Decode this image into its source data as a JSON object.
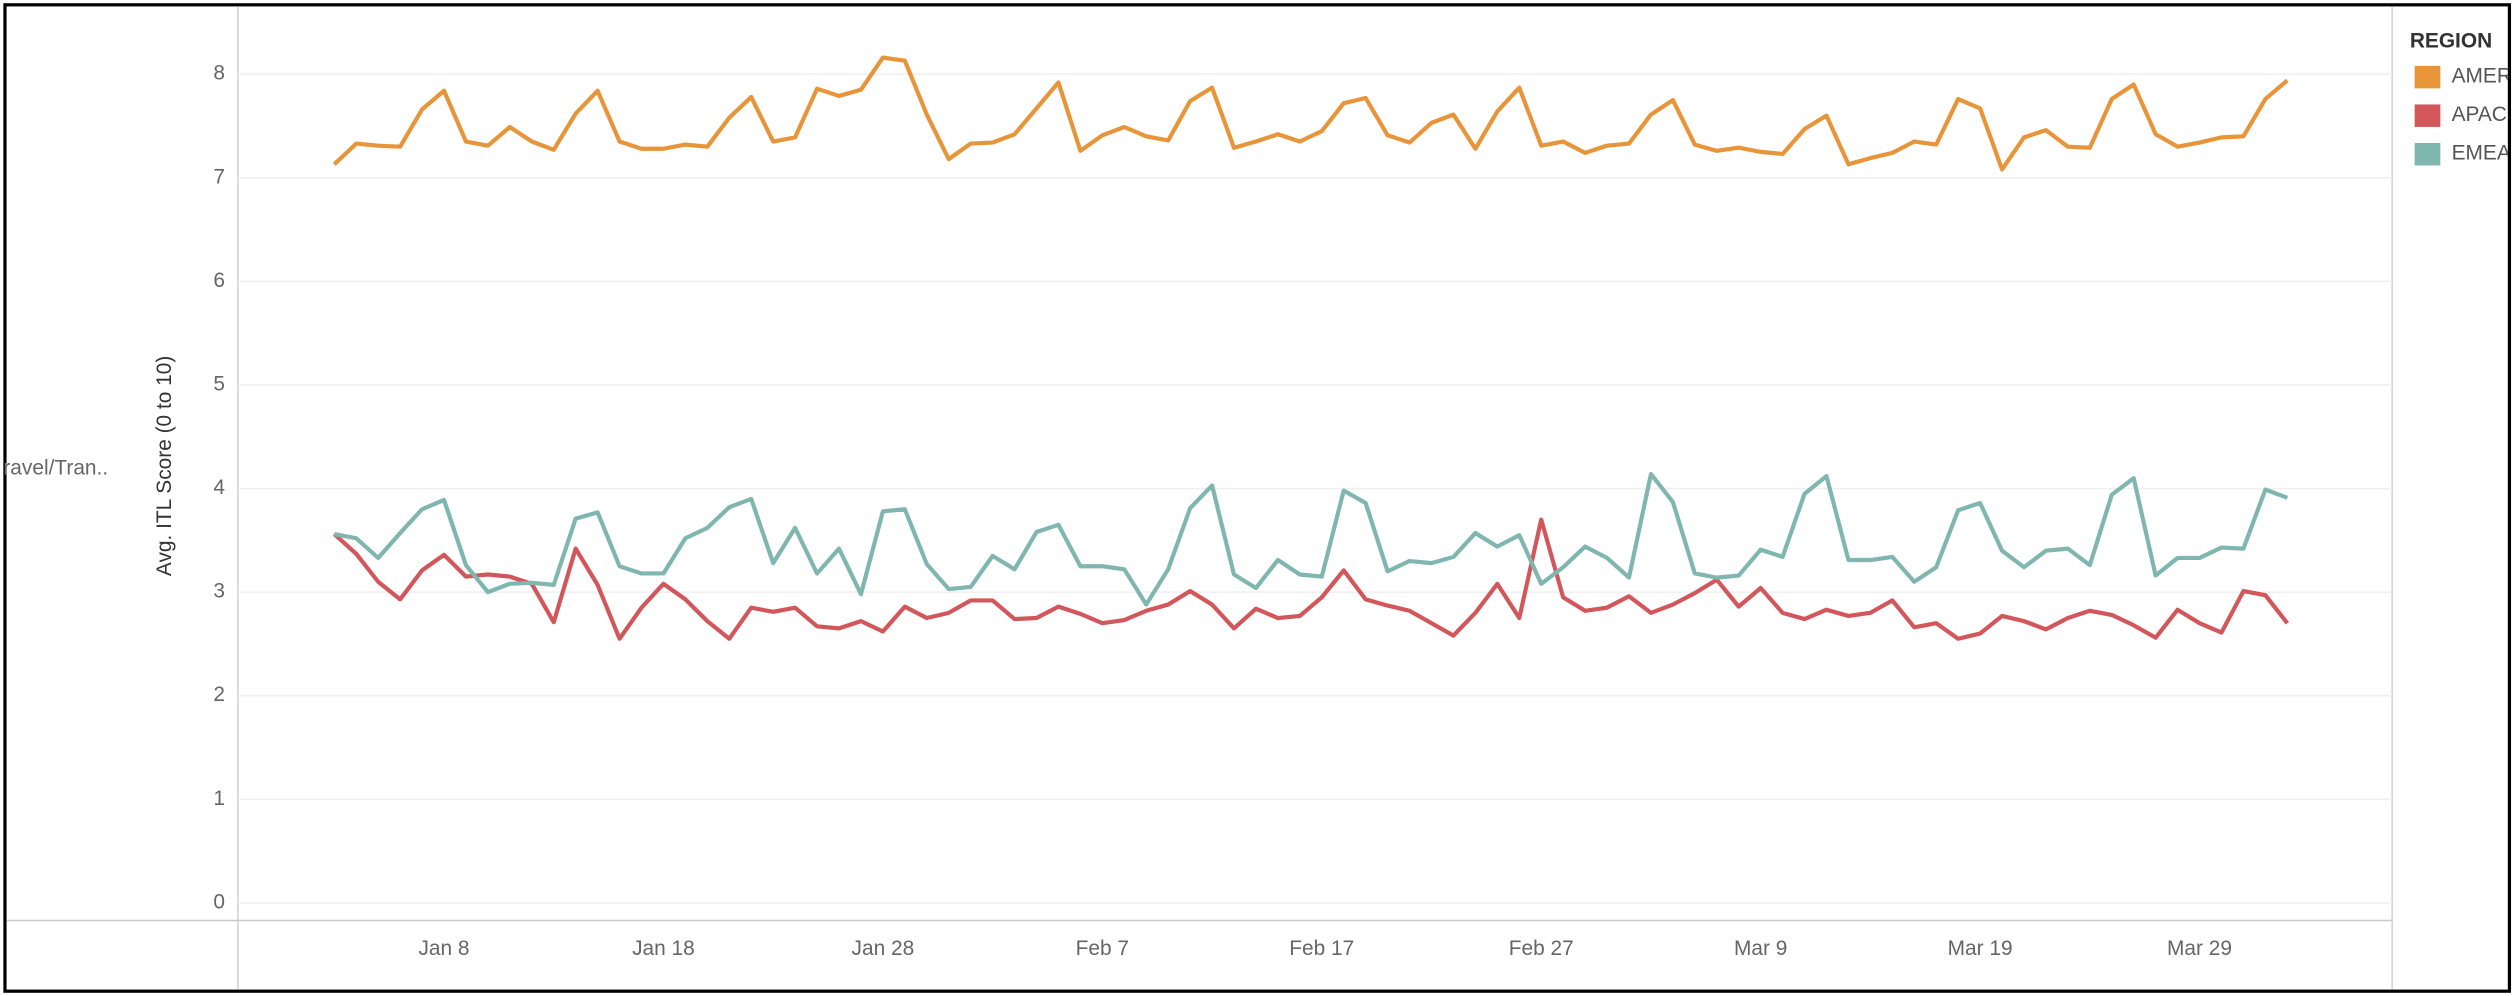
{
  "chart_data": {
    "type": "line",
    "ylabel": "Avg. ITL Score (0 to 10)",
    "row_label": "ravel/Tran..",
    "legend_title": "REGION",
    "legend": "right",
    "grid": true,
    "categories": [
      null,
      null,
      null,
      null,
      null,
      "Jan 8",
      null,
      null,
      null,
      null,
      null,
      null,
      null,
      null,
      null,
      "Jan 18",
      null,
      null,
      null,
      null,
      null,
      null,
      null,
      null,
      null,
      "Jan 28",
      null,
      null,
      null,
      null,
      null,
      null,
      null,
      null,
      null,
      "Feb 7",
      null,
      null,
      null,
      null,
      null,
      null,
      null,
      null,
      null,
      "Feb 17",
      null,
      null,
      null,
      null,
      null,
      null,
      null,
      null,
      null,
      "Feb 27",
      null,
      null,
      null,
      null,
      null,
      null,
      null,
      null,
      null,
      "Mar 9",
      null,
      null,
      null,
      null,
      null,
      null,
      null,
      null,
      null,
      "Mar 19",
      null,
      null,
      null,
      null,
      null,
      null,
      null,
      null,
      null,
      "Mar 29",
      null,
      null,
      null,
      null
    ],
    "ylim": [
      -0.17,
      8.53
    ],
    "yticks": [
      0,
      1,
      2,
      3,
      4,
      5,
      6,
      7,
      8
    ],
    "series": [
      {
        "name": "AMER",
        "color": "#e8953a",
        "values": [
          7.13,
          7.33,
          7.31,
          7.3,
          7.66,
          7.84,
          7.35,
          7.31,
          7.49,
          7.35,
          7.27,
          7.62,
          7.84,
          7.35,
          7.28,
          7.28,
          7.32,
          7.3,
          7.58,
          7.78,
          7.35,
          7.39,
          7.86,
          7.79,
          7.85,
          8.16,
          8.13,
          7.61,
          7.18,
          7.33,
          7.34,
          7.42,
          7.67,
          7.92,
          7.26,
          7.41,
          7.49,
          7.4,
          7.36,
          7.74,
          7.87,
          7.29,
          7.35,
          7.42,
          7.35,
          7.45,
          7.72,
          7.77,
          7.41,
          7.34,
          7.53,
          7.61,
          7.28,
          7.64,
          7.87,
          7.31,
          7.35,
          7.24,
          7.31,
          7.33,
          7.61,
          7.75,
          7.32,
          7.26,
          7.29,
          7.25,
          7.23,
          7.47,
          7.6,
          7.13,
          7.19,
          7.24,
          7.35,
          7.32,
          7.76,
          7.67,
          7.08,
          7.39,
          7.46,
          7.3,
          7.29,
          7.76,
          7.9,
          7.42,
          7.3,
          7.34,
          7.39,
          7.4,
          7.76,
          7.94
        ]
      },
      {
        "name": "APAC",
        "color": "#d3565b",
        "values": [
          3.56,
          3.37,
          3.1,
          2.93,
          3.21,
          3.36,
          3.15,
          3.17,
          3.15,
          3.08,
          2.71,
          3.42,
          3.07,
          2.55,
          2.85,
          3.08,
          2.93,
          2.72,
          2.55,
          2.85,
          2.81,
          2.85,
          2.67,
          2.65,
          2.72,
          2.62,
          2.86,
          2.75,
          2.8,
          2.92,
          2.92,
          2.74,
          2.75,
          2.86,
          2.79,
          2.7,
          2.73,
          2.82,
          2.88,
          3.01,
          2.88,
          2.65,
          2.84,
          2.75,
          2.77,
          2.95,
          3.21,
          2.93,
          2.87,
          2.82,
          2.7,
          2.58,
          2.8,
          3.08,
          2.75,
          3.7,
          2.95,
          2.82,
          2.85,
          2.96,
          2.8,
          2.88,
          2.99,
          3.12,
          2.86,
          3.04,
          2.8,
          2.74,
          2.83,
          2.77,
          2.8,
          2.92,
          2.66,
          2.7,
          2.55,
          2.6,
          2.77,
          2.72,
          2.64,
          2.75,
          2.82,
          2.78,
          2.68,
          2.56,
          2.83,
          2.7,
          2.61,
          3.01,
          2.97,
          2.7
        ]
      },
      {
        "name": "EMEA",
        "color": "#80b6b0",
        "values": [
          3.56,
          3.52,
          3.33,
          3.57,
          3.8,
          3.89,
          3.26,
          3.0,
          3.08,
          3.09,
          3.07,
          3.71,
          3.77,
          3.25,
          3.18,
          3.18,
          3.52,
          3.62,
          3.82,
          3.9,
          3.28,
          3.62,
          3.18,
          3.42,
          2.98,
          3.78,
          3.8,
          3.27,
          3.03,
          3.05,
          3.35,
          3.22,
          3.58,
          3.65,
          3.25,
          3.25,
          3.22,
          2.88,
          3.22,
          3.81,
          4.03,
          3.17,
          3.04,
          3.31,
          3.17,
          3.15,
          3.98,
          3.86,
          3.2,
          3.3,
          3.28,
          3.34,
          3.57,
          3.44,
          3.55,
          3.08,
          3.24,
          3.44,
          3.33,
          3.14,
          4.14,
          3.87,
          3.18,
          3.14,
          3.16,
          3.41,
          3.34,
          3.95,
          4.12,
          3.31,
          3.31,
          3.34,
          3.1,
          3.24,
          3.79,
          3.86,
          3.4,
          3.24,
          3.4,
          3.42,
          3.26,
          3.94,
          4.1,
          3.16,
          3.33,
          3.33,
          3.43,
          3.42,
          3.99,
          3.91
        ]
      }
    ]
  }
}
